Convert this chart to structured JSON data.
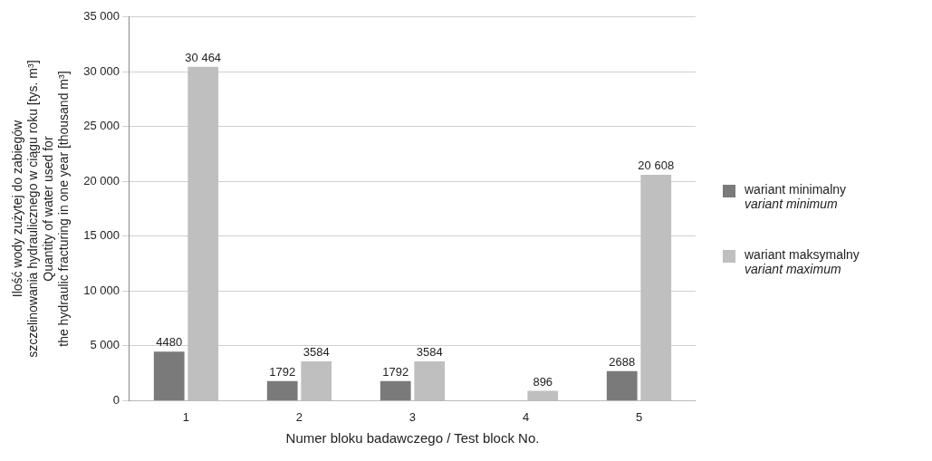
{
  "chart_data": {
    "type": "bar",
    "xlabel": "Numer bloku badawczego / Test block No.",
    "ylabel": "Ilość wody zużytej do zabiegów\nszczelinowania hydraulicznego w ciągu roku [tys. m³]\nQuantity of water used for\nthe hydraulic fracturing in one year [thousand m³]",
    "categories": [
      "1",
      "2",
      "3",
      "4",
      "5"
    ],
    "series": [
      {
        "name": "wariant minimalny\nvariant minimum",
        "color": "#7a7a7a",
        "values": [
          4480,
          1792,
          1792,
          null,
          2688
        ],
        "value_labels": [
          "4480",
          "1792",
          "1792",
          null,
          "2688"
        ]
      },
      {
        "name": "wariant maksymalny\nvariant maximum",
        "color": "#bfbfbf",
        "values": [
          30464,
          3584,
          3584,
          896,
          20608
        ],
        "value_labels": [
          "30 464",
          "3584",
          "3584",
          "896",
          "20 608"
        ]
      }
    ],
    "ylim": [
      0,
      35000
    ],
    "yticks": [
      0,
      {
        "value": 5000,
        "label": "5 000"
      },
      {
        "value": 10000,
        "label": "10 000"
      },
      {
        "value": 15000,
        "label": "15 000"
      },
      {
        "value": 20000,
        "label": "20 000"
      },
      {
        "value": 25000,
        "label": "25 000"
      },
      {
        "value": 30000,
        "label": "30 000"
      },
      {
        "value": 35000,
        "label": "35 000"
      }
    ],
    "grid": "y",
    "legend": "right"
  }
}
